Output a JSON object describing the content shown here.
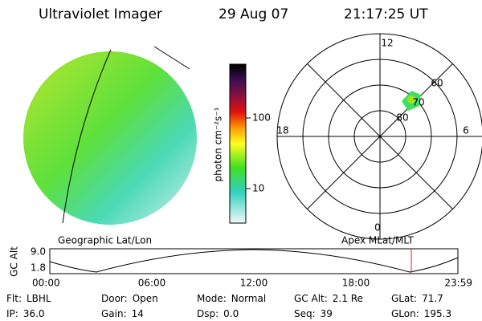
{
  "header": {
    "title": "Ultraviolet Imager",
    "date": "29 Aug 07",
    "time": "21:17:25 UT"
  },
  "colorbar": {
    "label": "photon cm⁻²s⁻¹",
    "ticks": [
      "100",
      "10"
    ]
  },
  "polar": {
    "labels": {
      "top": "12",
      "left": "18",
      "right": "6",
      "bottom": "0"
    },
    "rings": [
      "80",
      "70",
      "60"
    ]
  },
  "captions": {
    "left": "Geographic Lat/Lon",
    "right": "Apex MLat/MLT"
  },
  "altitude_plot": {
    "axis_label": "GC Alt",
    "yticks": [
      "9.0",
      "1.8"
    ],
    "xticks": [
      "00:00",
      "06:00",
      "12:00",
      "18:00",
      "23:59"
    ]
  },
  "info": {
    "rows": [
      [
        [
          "Flt:",
          "LBHL"
        ],
        [
          "Door:",
          "Open"
        ],
        [
          "Mode:",
          "Normal"
        ],
        [
          "GC Alt:",
          "2.1 Re"
        ],
        [
          "GLat:",
          "71.7"
        ]
      ],
      [
        [
          "IP:",
          "36.0"
        ],
        [
          "Gain:",
          "14"
        ],
        [
          "Dsp:",
          "0.0"
        ],
        [
          "Seq:",
          "39"
        ],
        [
          "GLon:",
          "195.3"
        ]
      ]
    ]
  }
}
